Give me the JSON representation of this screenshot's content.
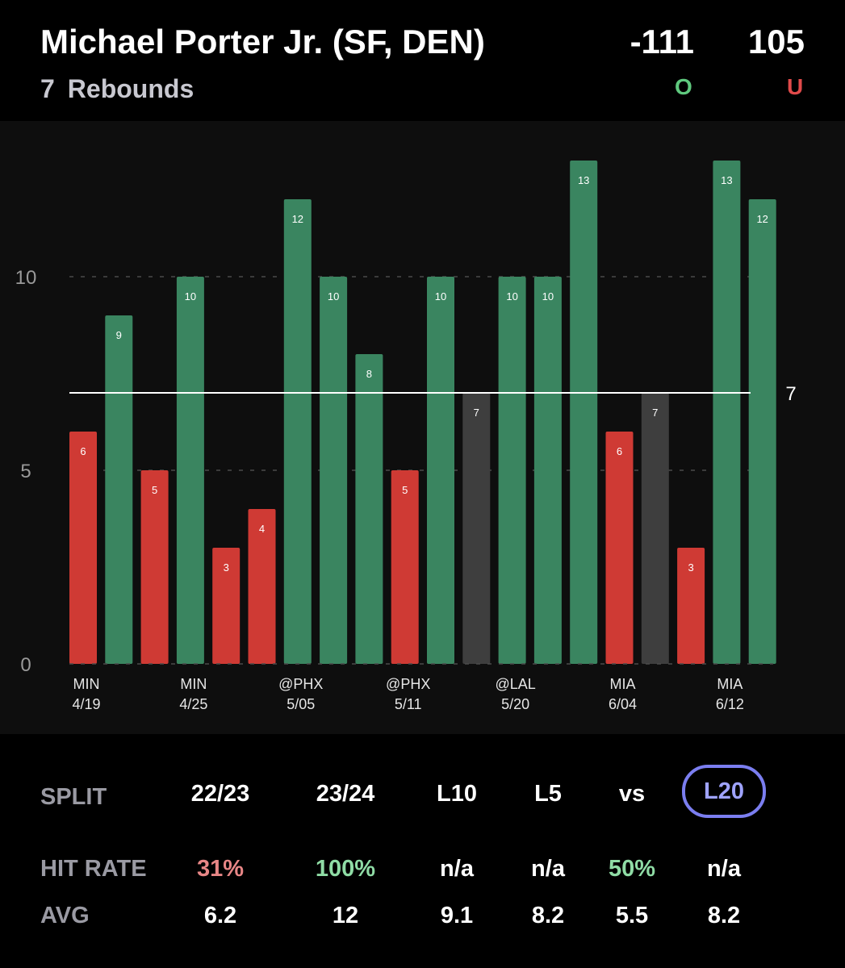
{
  "header": {
    "player": "Michael Porter Jr. (SF, DEN)",
    "line_value": "7",
    "stat": "Rebounds",
    "over_odds": "-111",
    "under_odds": "105",
    "over_label": "O",
    "under_label": "U"
  },
  "chart_data": {
    "type": "bar",
    "line": 7,
    "line_label": "7",
    "ylim": [
      0,
      14
    ],
    "yticks": [
      0,
      5,
      10
    ],
    "values": [
      6,
      9,
      5,
      10,
      3,
      4,
      12,
      10,
      8,
      5,
      10,
      7,
      10,
      10,
      13,
      6,
      7,
      3,
      13,
      12
    ],
    "outcomes": [
      "under",
      "over",
      "under",
      "over",
      "under",
      "under",
      "over",
      "over",
      "over",
      "under",
      "over",
      "push",
      "over",
      "over",
      "over",
      "under",
      "push",
      "under",
      "over",
      "over"
    ],
    "x_labels": [
      {
        "index": 0,
        "opp": "MIN",
        "date": "4/19"
      },
      {
        "index": 3,
        "opp": "MIN",
        "date": "4/25"
      },
      {
        "index": 6,
        "opp": "@PHX",
        "date": "5/05"
      },
      {
        "index": 9,
        "opp": "@PHX",
        "date": "5/11"
      },
      {
        "index": 12,
        "opp": "@LAL",
        "date": "5/20"
      },
      {
        "index": 15,
        "opp": "MIA",
        "date": "6/04"
      },
      {
        "index": 18,
        "opp": "MIA",
        "date": "6/12"
      }
    ],
    "colors": {
      "over": "#3a8560",
      "under": "#cf3a34",
      "push": "#3e3e3e"
    }
  },
  "splits": {
    "labels": {
      "split": "SPLIT",
      "hit_rate": "HIT RATE",
      "avg": "AVG"
    },
    "columns": [
      {
        "name": "22/23",
        "hit_rate": "31%",
        "hit_class": "rate-under",
        "avg": "6.2",
        "active": false
      },
      {
        "name": "23/24",
        "hit_rate": "100%",
        "hit_class": "rate-over",
        "avg": "12",
        "active": false
      },
      {
        "name": "L10",
        "hit_rate": "n/a",
        "hit_class": "",
        "avg": "9.1",
        "active": false
      },
      {
        "name": "L5",
        "hit_rate": "n/a",
        "hit_class": "",
        "avg": "8.2",
        "active": false
      },
      {
        "name": "vs",
        "hit_rate": "50%",
        "hit_class": "rate-over",
        "avg": "5.5",
        "active": false
      },
      {
        "name": "L20",
        "hit_rate": "n/a",
        "hit_class": "",
        "avg": "8.2",
        "active": true
      }
    ]
  }
}
